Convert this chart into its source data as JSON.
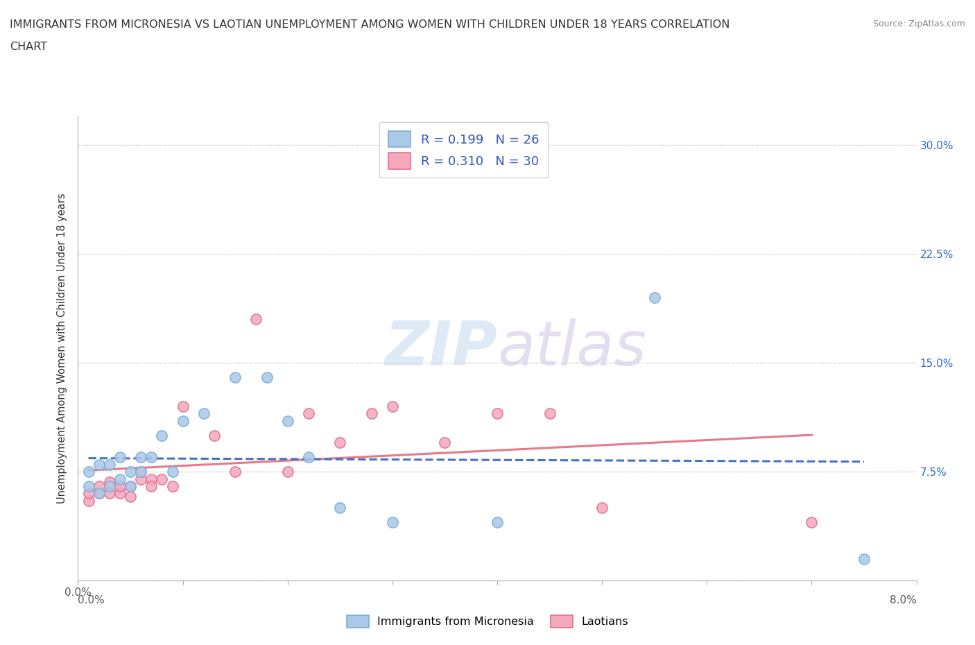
{
  "title": "IMMIGRANTS FROM MICRONESIA VS LAOTIAN UNEMPLOYMENT AMONG WOMEN WITH CHILDREN UNDER 18 YEARS CORRELATION\nCHART",
  "source": "Source: ZipAtlas.com",
  "ylabel": "Unemployment Among Women with Children Under 18 years",
  "xlim": [
    0.0,
    0.08
  ],
  "ylim": [
    0.0,
    0.32
  ],
  "xticks": [
    0.0,
    0.01,
    0.02,
    0.03,
    0.04,
    0.05,
    0.06,
    0.07,
    0.08
  ],
  "yticks": [
    0.0,
    0.075,
    0.15,
    0.225,
    0.3
  ],
  "grid_color": "#d0d0d0",
  "background_color": "#ffffff",
  "micronesia_color": "#aac8e8",
  "micronesia_edge": "#7aafd4",
  "laotian_color": "#f4a8bc",
  "laotian_edge": "#e07090",
  "micronesia_R": 0.199,
  "micronesia_N": 26,
  "laotian_R": 0.31,
  "laotian_N": 30,
  "micronesia_x": [
    0.001,
    0.001,
    0.002,
    0.002,
    0.003,
    0.003,
    0.004,
    0.004,
    0.005,
    0.005,
    0.006,
    0.006,
    0.007,
    0.008,
    0.009,
    0.01,
    0.012,
    0.015,
    0.018,
    0.02,
    0.022,
    0.025,
    0.03,
    0.04,
    0.055,
    0.075
  ],
  "micronesia_y": [
    0.065,
    0.075,
    0.06,
    0.08,
    0.065,
    0.08,
    0.07,
    0.085,
    0.065,
    0.075,
    0.075,
    0.085,
    0.085,
    0.1,
    0.075,
    0.11,
    0.115,
    0.14,
    0.14,
    0.11,
    0.085,
    0.05,
    0.04,
    0.04,
    0.195,
    0.015
  ],
  "laotian_x": [
    0.001,
    0.001,
    0.002,
    0.002,
    0.003,
    0.003,
    0.004,
    0.004,
    0.005,
    0.005,
    0.006,
    0.006,
    0.007,
    0.007,
    0.008,
    0.009,
    0.01,
    0.013,
    0.015,
    0.017,
    0.02,
    0.022,
    0.025,
    0.028,
    0.03,
    0.035,
    0.04,
    0.045,
    0.05,
    0.07
  ],
  "laotian_y": [
    0.055,
    0.06,
    0.06,
    0.065,
    0.06,
    0.068,
    0.06,
    0.065,
    0.065,
    0.058,
    0.07,
    0.075,
    0.07,
    0.065,
    0.07,
    0.065,
    0.12,
    0.1,
    0.075,
    0.18,
    0.075,
    0.115,
    0.095,
    0.115,
    0.12,
    0.095,
    0.115,
    0.115,
    0.05,
    0.04
  ],
  "legend_label_micronesia": "Immigrants from Micronesia",
  "legend_label_laotian": "Laotians",
  "micronesia_line_color": "#4472c4",
  "micronesia_line_style": "--",
  "laotian_line_color": "#e8788a",
  "laotian_line_style": "-"
}
